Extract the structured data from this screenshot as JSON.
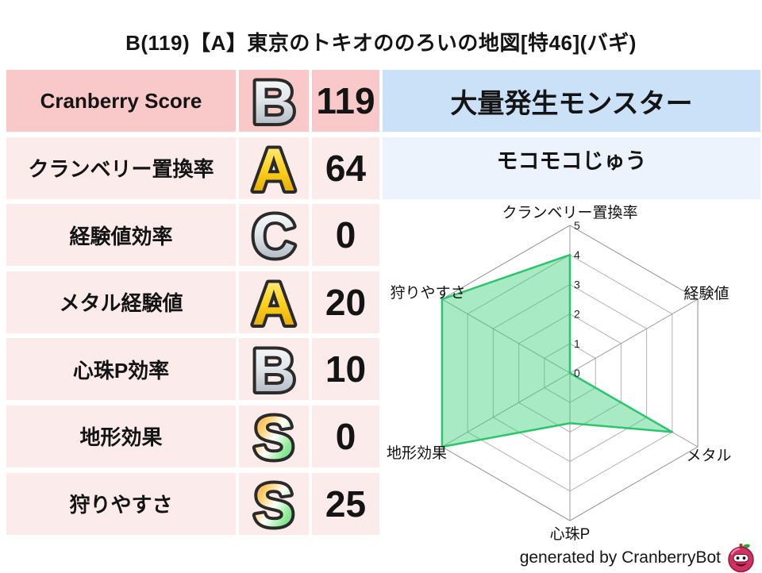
{
  "title": "B(119)【A】東京のトキオののろいの地図[特46](バギ)",
  "colors": {
    "row_header_bg": "#f9c9c9",
    "row_bg": "#fcebeb",
    "monster_header_bg": "#cbe1f8",
    "monster_name_bg": "#ecf3fc",
    "radar_fill": "rgba(46,204,113,0.42)",
    "radar_stroke": "#2dc46e"
  },
  "stats_table": {
    "rows": [
      {
        "label": "Cranberry Score",
        "grade": "B",
        "grade_style": "silver",
        "value": "119"
      },
      {
        "label": "クランベリー置換率",
        "grade": "A",
        "grade_style": "gold",
        "value": "64"
      },
      {
        "label": "経験値効率",
        "grade": "C",
        "grade_style": "silver",
        "value": "0"
      },
      {
        "label": "メタル経験値",
        "grade": "A",
        "grade_style": "gold",
        "value": "20"
      },
      {
        "label": "心珠P効率",
        "grade": "B",
        "grade_style": "silver",
        "value": "10"
      },
      {
        "label": "地形効果",
        "grade": "S",
        "grade_style": "rainbow",
        "value": "0"
      },
      {
        "label": "狩りやすさ",
        "grade": "S",
        "grade_style": "rainbow",
        "value": "25"
      }
    ]
  },
  "monster_panel": {
    "header": "大量発生モンスター",
    "name": "モコモコじゅう"
  },
  "chart_data": {
    "type": "radar",
    "categories": [
      "クランベリー置換率",
      "経験値",
      "メタル",
      "心珠P",
      "地形効果",
      "狩りやすさ"
    ],
    "values": [
      4,
      0,
      4,
      1.7,
      5,
      5
    ],
    "ticks": [
      0,
      1,
      2,
      3,
      4,
      5
    ],
    "rmax": 5,
    "grid": true,
    "legend": false
  },
  "footer": {
    "credit": "generated by CranberryBot",
    "icon": "cranberry-bot-icon"
  }
}
